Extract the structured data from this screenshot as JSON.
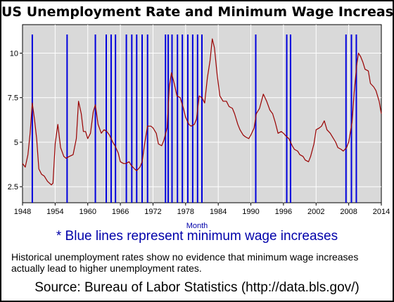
{
  "chart_data": {
    "type": "line",
    "title": "US Unemployment Rate and Minimum Wage Increases",
    "xlabel": "Month",
    "ylabel": "",
    "xlim": [
      1948,
      2014
    ],
    "ylim": [
      1.6,
      11.6
    ],
    "x_ticks": [
      "1948",
      "1954",
      "1960",
      "1966",
      "1972",
      "1978",
      "1984",
      "1990",
      "1996",
      "2002",
      "2008",
      "2014"
    ],
    "y_ticks": [
      "2.5",
      "5",
      "7.5",
      "10"
    ],
    "grid": true,
    "line_color": "#990000",
    "vline_color": "#0000dd",
    "series": [
      {
        "values": [
          [
            1948.0,
            3.8
          ],
          [
            1948.5,
            3.6
          ],
          [
            1949.0,
            4.3
          ],
          [
            1949.4,
            5.5
          ],
          [
            1949.8,
            7.2
          ],
          [
            1950.2,
            6.3
          ],
          [
            1950.6,
            5.2
          ],
          [
            1951.0,
            3.5
          ],
          [
            1951.5,
            3.2
          ],
          [
            1952.0,
            3.1
          ],
          [
            1952.6,
            2.8
          ],
          [
            1953.3,
            2.6
          ],
          [
            1953.6,
            2.7
          ],
          [
            1954.0,
            4.9
          ],
          [
            1954.5,
            6.0
          ],
          [
            1955.0,
            4.7
          ],
          [
            1955.6,
            4.2
          ],
          [
            1956.0,
            4.1
          ],
          [
            1956.6,
            4.2
          ],
          [
            1957.3,
            4.3
          ],
          [
            1957.9,
            5.2
          ],
          [
            1958.3,
            7.3
          ],
          [
            1958.8,
            6.6
          ],
          [
            1959.2,
            5.6
          ],
          [
            1959.6,
            5.6
          ],
          [
            1960.0,
            5.2
          ],
          [
            1960.5,
            5.5
          ],
          [
            1961.0,
            6.7
          ],
          [
            1961.4,
            7.1
          ],
          [
            1961.9,
            6.0
          ],
          [
            1962.5,
            5.5
          ],
          [
            1963.0,
            5.7
          ],
          [
            1963.5,
            5.6
          ],
          [
            1964.0,
            5.4
          ],
          [
            1964.6,
            5.0
          ],
          [
            1965.0,
            4.8
          ],
          [
            1965.6,
            4.4
          ],
          [
            1966.0,
            3.9
          ],
          [
            1966.6,
            3.8
          ],
          [
            1967.0,
            3.8
          ],
          [
            1967.6,
            3.9
          ],
          [
            1968.0,
            3.7
          ],
          [
            1968.6,
            3.5
          ],
          [
            1969.0,
            3.4
          ],
          [
            1969.6,
            3.6
          ],
          [
            1970.0,
            3.9
          ],
          [
            1970.5,
            5.0
          ],
          [
            1971.0,
            5.9
          ],
          [
            1971.6,
            5.9
          ],
          [
            1972.0,
            5.8
          ],
          [
            1972.6,
            5.5
          ],
          [
            1973.0,
            4.9
          ],
          [
            1973.6,
            4.8
          ],
          [
            1974.0,
            5.1
          ],
          [
            1974.6,
            5.8
          ],
          [
            1975.0,
            8.1
          ],
          [
            1975.4,
            8.9
          ],
          [
            1975.9,
            8.3
          ],
          [
            1976.4,
            7.6
          ],
          [
            1977.0,
            7.5
          ],
          [
            1977.6,
            6.9
          ],
          [
            1978.0,
            6.4
          ],
          [
            1978.6,
            6.0
          ],
          [
            1979.0,
            5.9
          ],
          [
            1979.6,
            6.0
          ],
          [
            1980.0,
            6.3
          ],
          [
            1980.5,
            7.6
          ],
          [
            1981.0,
            7.5
          ],
          [
            1981.5,
            7.2
          ],
          [
            1982.0,
            8.6
          ],
          [
            1982.5,
            9.6
          ],
          [
            1982.9,
            10.8
          ],
          [
            1983.3,
            10.3
          ],
          [
            1983.8,
            8.8
          ],
          [
            1984.3,
            7.6
          ],
          [
            1984.9,
            7.3
          ],
          [
            1985.5,
            7.3
          ],
          [
            1986.0,
            7.0
          ],
          [
            1986.6,
            6.9
          ],
          [
            1987.0,
            6.6
          ],
          [
            1987.6,
            6.0
          ],
          [
            1988.0,
            5.7
          ],
          [
            1988.6,
            5.4
          ],
          [
            1989.0,
            5.3
          ],
          [
            1989.6,
            5.2
          ],
          [
            1990.0,
            5.4
          ],
          [
            1990.6,
            5.8
          ],
          [
            1991.0,
            6.6
          ],
          [
            1991.6,
            6.9
          ],
          [
            1992.3,
            7.7
          ],
          [
            1992.9,
            7.3
          ],
          [
            1993.5,
            6.8
          ],
          [
            1994.0,
            6.6
          ],
          [
            1994.5,
            6.1
          ],
          [
            1995.0,
            5.5
          ],
          [
            1995.6,
            5.6
          ],
          [
            1996.0,
            5.5
          ],
          [
            1996.6,
            5.3
          ],
          [
            1997.0,
            5.2
          ],
          [
            1997.6,
            4.8
          ],
          [
            1998.0,
            4.6
          ],
          [
            1998.6,
            4.5
          ],
          [
            1999.0,
            4.3
          ],
          [
            1999.6,
            4.2
          ],
          [
            2000.0,
            4.0
          ],
          [
            2000.6,
            3.9
          ],
          [
            2001.0,
            4.2
          ],
          [
            2001.6,
            4.9
          ],
          [
            2002.0,
            5.7
          ],
          [
            2002.6,
            5.8
          ],
          [
            2003.0,
            5.9
          ],
          [
            2003.5,
            6.2
          ],
          [
            2004.0,
            5.7
          ],
          [
            2004.6,
            5.5
          ],
          [
            2005.0,
            5.3
          ],
          [
            2005.6,
            5.0
          ],
          [
            2006.0,
            4.7
          ],
          [
            2006.6,
            4.6
          ],
          [
            2007.0,
            4.5
          ],
          [
            2007.6,
            4.7
          ],
          [
            2008.0,
            5.0
          ],
          [
            2008.6,
            6.1
          ],
          [
            2009.0,
            7.8
          ],
          [
            2009.5,
            9.4
          ],
          [
            2009.8,
            10.0
          ],
          [
            2010.2,
            9.8
          ],
          [
            2010.6,
            9.5
          ],
          [
            2011.0,
            9.1
          ],
          [
            2011.6,
            9.0
          ],
          [
            2012.0,
            8.3
          ],
          [
            2012.6,
            8.1
          ],
          [
            2013.0,
            7.9
          ],
          [
            2013.6,
            7.3
          ],
          [
            2014.0,
            6.6
          ]
        ]
      }
    ],
    "min_wage_increases": [
      1949.8,
      1956.2,
      1961.4,
      1963.4,
      1964.3,
      1965.1,
      1967.1,
      1968.1,
      1969.0,
      1970.0,
      1971.0,
      1974.3,
      1974.8,
      1975.5,
      1976.5,
      1977.4,
      1978.4,
      1979.3,
      1980.2,
      1981.0,
      1990.9,
      1996.6,
      1997.3,
      2007.5,
      2008.5,
      2009.4
    ]
  },
  "note": "* Blue lines represent minimum wage increases",
  "caption": "Historical unemployment rates show no evidence that minimum wage increases actually lead to higher unemployment rates.",
  "source": "Source: Bureau of Labor Statistics (http://data.bls.gov/)"
}
